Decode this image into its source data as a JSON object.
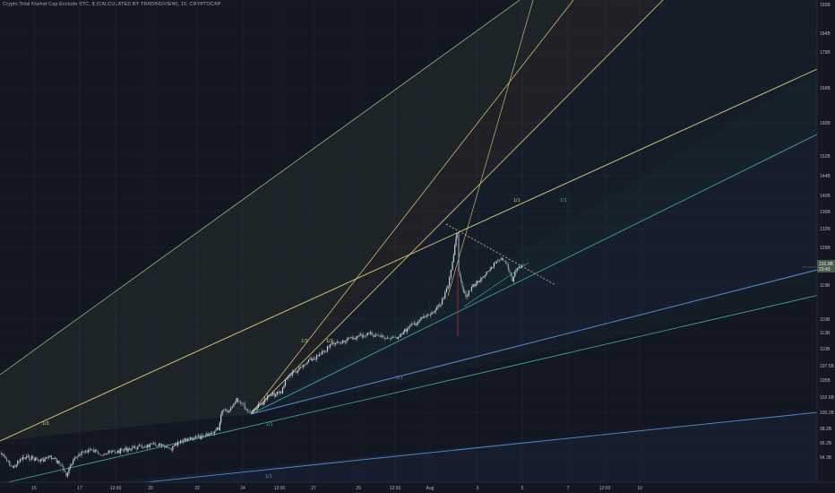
{
  "header": {
    "symbol_line": "Crypto Total Market Cap Exclude BTC, $ (CALCULATED BY TRADINGVIEW), 15, CRYPTOCAP"
  },
  "colors": {
    "background": "#131722",
    "grid": "#1e2230",
    "candle_up": "#c8d2d8",
    "candle_down": "#8e9aa2",
    "wick_spike": "#b83b3b",
    "fan_yellow": "#e6d07a",
    "fan_lime": "#9fd383",
    "fan_teal": "#3fb0a4",
    "fan_blue": "#4d8fd6",
    "trend_dashed": "#e0c86a",
    "price_badge": "#4a5a4e"
  },
  "chart_data": {
    "type": "candlestick",
    "title": "",
    "xlabel": "",
    "ylabel": "",
    "x_ticks": [
      "15",
      "17",
      "12:00",
      "20",
      "22",
      "24",
      "12:00",
      "27",
      "29",
      "12:00",
      "Aug",
      "3",
      "5",
      "7",
      "12:00",
      "10"
    ],
    "y_ticks": [
      "193B",
      "184B",
      "179B",
      "169B",
      "160B",
      "152B",
      "144B",
      "140B",
      "136B",
      "132B",
      "129B",
      "119B",
      "116B",
      "113B",
      "110B",
      "107.5B",
      "105B",
      "102.6B",
      "100.2B",
      "98.2B",
      "96.2B",
      "94.3B"
    ],
    "current_price": "131.9B",
    "price_badge_lines": [
      "131.9B",
      "23:43"
    ],
    "fan_labels": [
      "1/3",
      "1/2",
      "1/2",
      "1/1",
      "1/1",
      "1/1",
      "1/1",
      "1/1"
    ],
    "series_approx": [
      {
        "x_index": 0,
        "price_b": 97.2
      },
      {
        "x_index": 1,
        "price_b": 96.3
      },
      {
        "x_index": 2,
        "price_b": 97.6
      },
      {
        "x_index": 3,
        "price_b": 98.6
      },
      {
        "x_index": 4,
        "price_b": 103.1
      },
      {
        "x_index": 5,
        "price_b": 105.2
      },
      {
        "x_index": 6,
        "price_b": 107.6
      },
      {
        "x_index": 7,
        "price_b": 110.8
      },
      {
        "x_index": 8,
        "price_b": 113.1
      },
      {
        "x_index": 9,
        "price_b": 117.5
      },
      {
        "x_index": 10,
        "price_b": 130.7
      },
      {
        "x_index": 11,
        "price_b": 128.1
      },
      {
        "x_index": 12,
        "price_b": 131.9
      }
    ],
    "grid": true,
    "legend": "none"
  }
}
